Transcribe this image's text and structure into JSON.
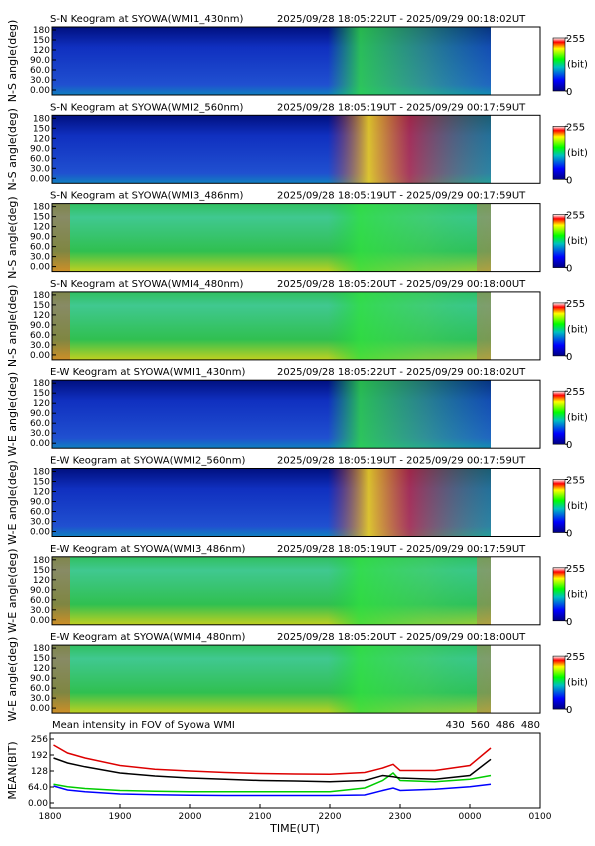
{
  "chart_data": [
    {
      "type": "heatmap",
      "title": "S-N Keogram at SYOWA(WMI1_430nm)",
      "time_range": "2025/09/28 18:05:22UT - 2025/09/29 00:18:02UT",
      "y_label": "N-S angle(deg)",
      "ylim": [
        -15,
        189
      ],
      "yticks": [
        {
          "value": 0,
          "label": "0.00"
        },
        {
          "value": 30,
          "label": "30.0"
        },
        {
          "value": 60,
          "label": "60.0"
        },
        {
          "value": 90,
          "label": "90.0"
        },
        120,
        150,
        180
      ],
      "colorbar_ticks": [
        0,
        255
      ],
      "colorbar_label": "(bit)"
    },
    {
      "type": "heatmap",
      "title": "S-N Keogram at SYOWA(WMI2_560nm)",
      "time_range": "2025/09/28 18:05:19UT - 2025/09/29 00:17:59UT",
      "y_label": "N-S angle(deg)",
      "ylim": [
        -15,
        189
      ],
      "yticks": [
        {
          "value": 0,
          "label": "0.00"
        },
        {
          "value": 30,
          "label": "30.0"
        },
        {
          "value": 60,
          "label": "60.0"
        },
        {
          "value": 90,
          "label": "90.0"
        },
        120,
        150,
        180
      ],
      "colorbar_ticks": [
        0,
        255
      ],
      "colorbar_label": "(bit)"
    },
    {
      "type": "heatmap",
      "title": "S-N Keogram at SYOWA(WMI3_486nm)",
      "time_range": "2025/09/28 18:05:19UT - 2025/09/29 00:17:59UT",
      "y_label": "N-S angle(deg)",
      "ylim": [
        -15,
        189
      ],
      "yticks": [
        {
          "value": 0,
          "label": "0.00"
        },
        {
          "value": 30,
          "label": "30.0"
        },
        {
          "value": 60,
          "label": "60.0"
        },
        {
          "value": 90,
          "label": "90.0"
        },
        120,
        150,
        180
      ],
      "colorbar_ticks": [
        0,
        255
      ],
      "colorbar_label": "(bit)"
    },
    {
      "type": "heatmap",
      "title": "S-N Keogram at SYOWA(WMI4_480nm)",
      "time_range": "2025/09/28 18:05:20UT - 2025/09/29 00:18:00UT",
      "y_label": "N-S angle(deg)",
      "ylim": [
        -15,
        189
      ],
      "yticks": [
        {
          "value": 0,
          "label": "0.00"
        },
        {
          "value": 30,
          "label": "30.0"
        },
        {
          "value": 60,
          "label": "60.0"
        },
        {
          "value": 90,
          "label": "90.0"
        },
        120,
        150,
        180
      ],
      "colorbar_ticks": [
        0,
        255
      ],
      "colorbar_label": "(bit)"
    },
    {
      "type": "heatmap",
      "title": "E-W Keogram at SYOWA(WMI1_430nm)",
      "time_range": "2025/09/28 18:05:22UT - 2025/09/29 00:18:02UT",
      "y_label": "W-E angle(deg)",
      "ylim": [
        -15,
        189
      ],
      "yticks": [
        {
          "value": 0,
          "label": "0.00"
        },
        {
          "value": 30,
          "label": "30.0"
        },
        {
          "value": 60,
          "label": "60.0"
        },
        {
          "value": 90,
          "label": "90.0"
        },
        120,
        150,
        180
      ],
      "colorbar_ticks": [
        0,
        255
      ],
      "colorbar_label": "(bit)"
    },
    {
      "type": "heatmap",
      "title": "E-W Keogram at SYOWA(WMI2_560nm)",
      "time_range": "2025/09/28 18:05:19UT - 2025/09/29 00:17:59UT",
      "y_label": "W-E angle(deg)",
      "ylim": [
        -15,
        189
      ],
      "yticks": [
        {
          "value": 0,
          "label": "0.00"
        },
        {
          "value": 30,
          "label": "30.0"
        },
        {
          "value": 60,
          "label": "60.0"
        },
        {
          "value": 90,
          "label": "90.0"
        },
        120,
        150,
        180
      ],
      "colorbar_ticks": [
        0,
        255
      ],
      "colorbar_label": "(bit)"
    },
    {
      "type": "heatmap",
      "title": "E-W Keogram at SYOWA(WMI3_486nm)",
      "time_range": "2025/09/28 18:05:19UT - 2025/09/29 00:17:59UT",
      "y_label": "W-E angle(deg)",
      "ylim": [
        -15,
        189
      ],
      "yticks": [
        {
          "value": 0,
          "label": "0.00"
        },
        {
          "value": 30,
          "label": "30.0"
        },
        {
          "value": 60,
          "label": "60.0"
        },
        {
          "value": 90,
          "label": "90.0"
        },
        120,
        150,
        180
      ],
      "colorbar_ticks": [
        0,
        255
      ],
      "colorbar_label": "(bit)"
    },
    {
      "type": "heatmap",
      "title": "E-W Keogram at SYOWA(WMI4_480nm)",
      "time_range": "2025/09/28 18:05:20UT - 2025/09/29 00:18:00UT",
      "y_label": "W-E angle(deg)",
      "ylim": [
        -15,
        189
      ],
      "yticks": [
        {
          "value": 0,
          "label": "0.00"
        },
        {
          "value": 30,
          "label": "30.0"
        },
        {
          "value": 60,
          "label": "60.0"
        },
        {
          "value": 90,
          "label": "90.0"
        },
        120,
        150,
        180
      ],
      "colorbar_ticks": [
        0,
        255
      ],
      "colorbar_label": "(bit)"
    },
    {
      "type": "line",
      "title": "Mean intensity in FOV of Syowa WMI",
      "y_label": "MEAN(BIT)",
      "x_label": "TIME(UT)",
      "legend": "upper right",
      "x": [
        18.05,
        18.25,
        18.5,
        19,
        19.5,
        20,
        20.5,
        21,
        21.5,
        22,
        22.5,
        22.75,
        22.9,
        23,
        23.5,
        24,
        24.3
      ],
      "xlim": [
        18,
        25
      ],
      "xticks": [
        {
          "value": 18,
          "label": "1800"
        },
        {
          "value": 19,
          "label": "1900"
        },
        {
          "value": 20,
          "label": "2000"
        },
        {
          "value": 21,
          "label": "2100"
        },
        {
          "value": 22,
          "label": "2200"
        },
        {
          "value": 23,
          "label": "2300"
        },
        {
          "value": 24,
          "label": "0000"
        },
        {
          "value": 25,
          "label": "0100"
        }
      ],
      "ylim": [
        -20,
        280
      ],
      "yticks": [
        {
          "value": 0,
          "label": "0.00"
        },
        {
          "value": 64,
          "label": "64.0"
        },
        128,
        192,
        256
      ],
      "series": [
        {
          "name": "430",
          "color": "#0000ff",
          "values": [
            68,
            52,
            45,
            36,
            33,
            31,
            30,
            30,
            30,
            30,
            32,
            50,
            60,
            50,
            55,
            65,
            75
          ]
        },
        {
          "name": "560",
          "color": "#00cc00",
          "values": [
            75,
            65,
            58,
            50,
            47,
            45,
            45,
            45,
            45,
            45,
            60,
            90,
            120,
            90,
            85,
            95,
            110
          ]
        },
        {
          "name": "486",
          "color": "#dd0000",
          "values": [
            232,
            200,
            180,
            150,
            135,
            128,
            122,
            118,
            116,
            115,
            122,
            140,
            155,
            130,
            130,
            150,
            220
          ]
        },
        {
          "name": "480",
          "color": "#000000",
          "values": [
            180,
            160,
            145,
            120,
            108,
            100,
            95,
            90,
            88,
            85,
            90,
            110,
            105,
            100,
            95,
            110,
            175
          ]
        }
      ]
    }
  ]
}
